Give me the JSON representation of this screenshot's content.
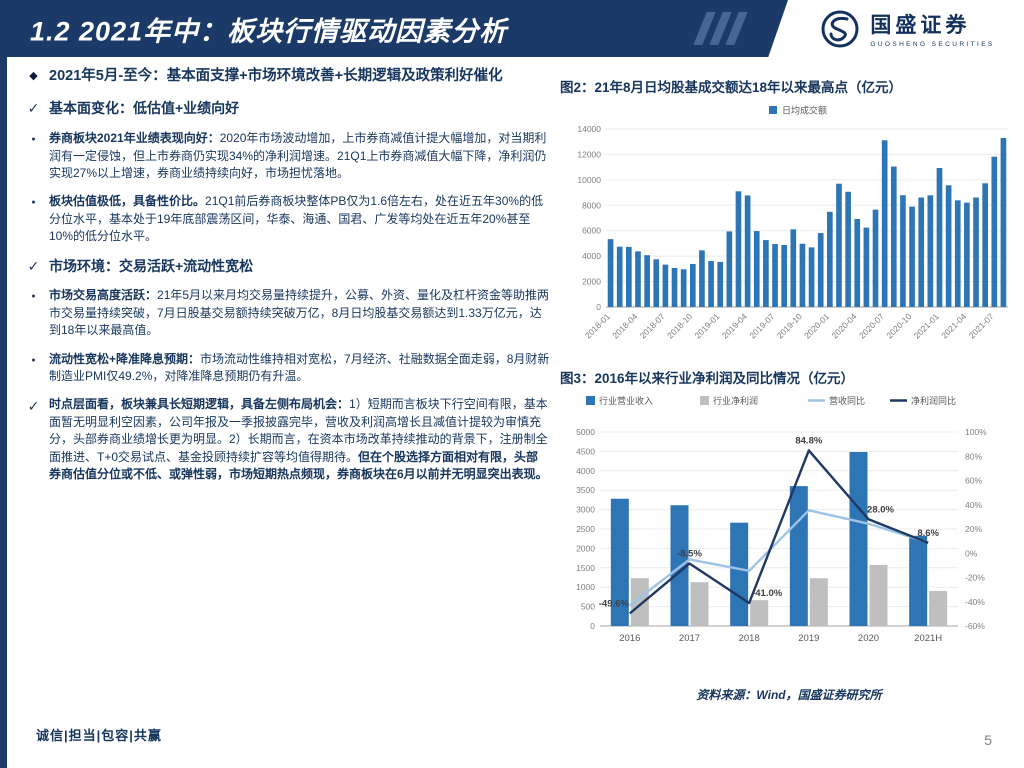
{
  "page_number": "5",
  "colors": {
    "brand": "#1b3a68",
    "chart_blue": "#2E75B6",
    "chart_gray": "#BFBFBF",
    "line_light": "#9DC3E6",
    "line_dark": "#1F3864"
  },
  "header": {
    "title": "1.2 2021年中：板块行情驱动因素分析",
    "logo_cn": "国盛证券",
    "logo_en": "GUOSHENG SECURITIES"
  },
  "left": {
    "bullets": [
      {
        "marker": "diamond",
        "small": false,
        "segments": [
          {
            "t": "2021年5月-至今：基本面支撑+市场环境改善+长期逻辑及政策利好催化",
            "b": true
          }
        ]
      },
      {
        "marker": "check",
        "small": false,
        "segments": [
          {
            "t": "基本面变化：低估值+业绩向好",
            "b": true
          }
        ]
      },
      {
        "marker": "dot",
        "small": false,
        "segments": [
          {
            "t": "券商板块2021年业绩表现向好：",
            "b": true
          },
          {
            "t": "2020年市场波动增加，上市券商减值计提大幅增加，对当期利润有一定侵蚀，但上市券商仍实现34%的净利润增速。21Q1上市券商减值大幅下降，净利润仍实现27%以上增速，券商业绩持续向好，市场担忧落地。",
            "b": false
          }
        ]
      },
      {
        "marker": "dot",
        "small": false,
        "segments": [
          {
            "t": "板块估值极低，具备性价比。",
            "b": true
          },
          {
            "t": "21Q1前后券商板块整体PB仅为1.6倍左右，处在近五年30%的低分位水平，基本处于19年底部震荡区间，华泰、海通、国君、广发等均处在近五年20%甚至10%的低分位水平。",
            "b": false
          }
        ]
      },
      {
        "marker": "check",
        "small": false,
        "segments": [
          {
            "t": "市场环境：交易活跃+流动性宽松",
            "b": true
          }
        ]
      },
      {
        "marker": "dot",
        "small": false,
        "segments": [
          {
            "t": "市场交易高度活跃：",
            "b": true
          },
          {
            "t": "21年5月以来月均交易量持续提升，公募、外资、量化及杠杆资金等助推两市交易量持续突破，7月日股基交易额持续突破万亿，8月日均股基交易额达到1.33万亿元，达到18年以来最高值。",
            "b": false
          }
        ]
      },
      {
        "marker": "dot",
        "small": false,
        "segments": [
          {
            "t": "流动性宽松+降准降息预期：",
            "b": true
          },
          {
            "t": "市场流动性维持相对宽松，7月经济、社融数据全面走弱，8月财新制造业PMI仅49.2%，对降准降息预期仍有升温。",
            "b": false
          }
        ]
      },
      {
        "marker": "check",
        "small": true,
        "segments": [
          {
            "t": "时点层面看，板块兼具长短期逻辑，具备左侧布局机会：",
            "b": true
          },
          {
            "t": "1）短期而言板块下行空间有限，基本面暂无明显利空因素，公司年报及一季报披露完毕，营收及利润高增长且减值计提较为审慎充分，头部券商业绩增长更为明显。2）长期而言，在资本市场改革持续推动的背景下，注册制全面推进、T+0交易试点、基金投顾持续扩容等均值得期待。",
            "b": false
          },
          {
            "t": "但在个股选择方面相对有限，头部券商估值分位或不低、或弹性弱，市场短期热点频现，券商板块在6月以前并无明显突出表现。",
            "b": true
          }
        ]
      }
    ],
    "footer": "诚信|担当|包容|共赢"
  },
  "right": {
    "source": "资料来源：Wind，国盛证券研究所"
  },
  "chart_data": [
    {
      "type": "bar",
      "title": "图2：21年8月日均股基成交额达18年以来最高点（亿元）",
      "legend": [
        "日均成交额"
      ],
      "bar_color": "#2E75B6",
      "ylim": [
        0,
        14000
      ],
      "y_ticks": [
        0,
        2000,
        4000,
        6000,
        8000,
        10000,
        12000,
        14000
      ],
      "x_tick_labels": [
        "2018-01",
        "2018-04",
        "2018-07",
        "2018-10",
        "2019-01",
        "2019-04",
        "2019-07",
        "2019-10",
        "2020-01",
        "2020-04",
        "2020-07",
        "2020-10",
        "2021-01",
        "2021-04",
        "2021-07"
      ],
      "values": [
        5337,
        4744,
        4727,
        4376,
        4078,
        3752,
        3331,
        3067,
        2966,
        3387,
        4458,
        3617,
        3545,
        5946,
        9100,
        8771,
        5970,
        5263,
        4954,
        4874,
        6107,
        4975,
        4687,
        5813,
        7489,
        9696,
        9062,
        6922,
        6244,
        7655,
        13112,
        11043,
        8791,
        7899,
        8613,
        8784,
        10933,
        9573,
        8390,
        8206,
        8615,
        9729,
        11824,
        13292
      ]
    },
    {
      "type": "combo",
      "title": "图3：2016年以来行业净利润及同比情况（亿元）",
      "categories": [
        "2016",
        "2017",
        "2018",
        "2019",
        "2020",
        "2021H"
      ],
      "ylim_left": [
        0,
        5000
      ],
      "ylim_right": [
        -60,
        100
      ],
      "left_tick_step": 500,
      "right_tick_step": 20,
      "series": [
        {
          "name": "行业营业收入",
          "kind": "bar",
          "color": "#2E75B6",
          "values": [
            3280,
            3113,
            2663,
            3605,
            4485,
            2324
          ]
        },
        {
          "name": "行业净利润",
          "kind": "bar",
          "color": "#BFBFBF",
          "values": [
            1234,
            1130,
            666,
            1231,
            1575,
            903
          ]
        },
        {
          "name": "营收同比",
          "kind": "line",
          "color": "#9DC3E6",
          "values": [
            -43.0,
            -5.1,
            -14.5,
            35.4,
            24.4,
            8.9
          ]
        },
        {
          "name": "净利润同比",
          "kind": "line",
          "color": "#1F3864",
          "values": [
            -49.6,
            -8.5,
            -41.0,
            84.8,
            28.0,
            8.6
          ],
          "labels": [
            "-49.6%",
            "-8.5%",
            "-41.0%",
            "84.8%",
            "28.0%",
            "8.6%"
          ]
        }
      ],
      "legend_position": "top"
    }
  ]
}
